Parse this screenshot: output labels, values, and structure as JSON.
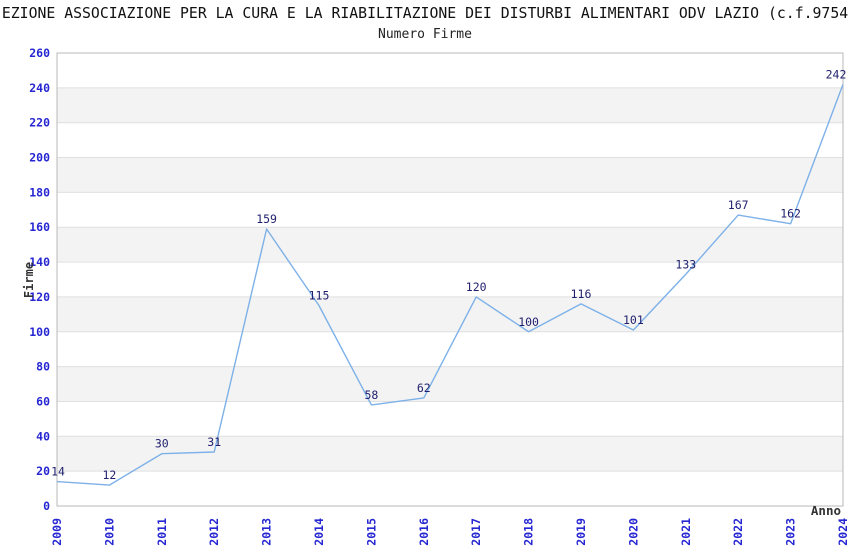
{
  "chart_data": {
    "type": "line",
    "title": "EZIONE ASSOCIAZIONE PER LA CURA E LA RIABILITAZIONE DEI DISTURBI ALIMENTARI ODV LAZIO (c.f.9754",
    "subtitle": "Numero Firme",
    "xlabel": "Anno",
    "ylabel": "Firme",
    "categories": [
      "2009",
      "2010",
      "2011",
      "2012",
      "2013",
      "2014",
      "2015",
      "2016",
      "2017",
      "2018",
      "2019",
      "2020",
      "2021",
      "2022",
      "2023",
      "2024"
    ],
    "values": [
      14,
      12,
      30,
      31,
      159,
      115,
      58,
      62,
      120,
      100,
      116,
      101,
      133,
      167,
      162,
      242
    ],
    "ylim": [
      0,
      260
    ],
    "ytick_step": 20,
    "xtick_rotation": 90,
    "grid": "horizontal",
    "alternating_bands": true,
    "legend": "none",
    "data_labels": true,
    "markers": "none"
  },
  "colors": {
    "line": "#7db1e8",
    "tick_label": "#2626d2",
    "data_label": "#1f1f6e",
    "band": "#f3f3f3",
    "grid": "#e0e0e0",
    "border": "#b8b8b8",
    "title": "#111111",
    "axis_title": "#333333"
  }
}
